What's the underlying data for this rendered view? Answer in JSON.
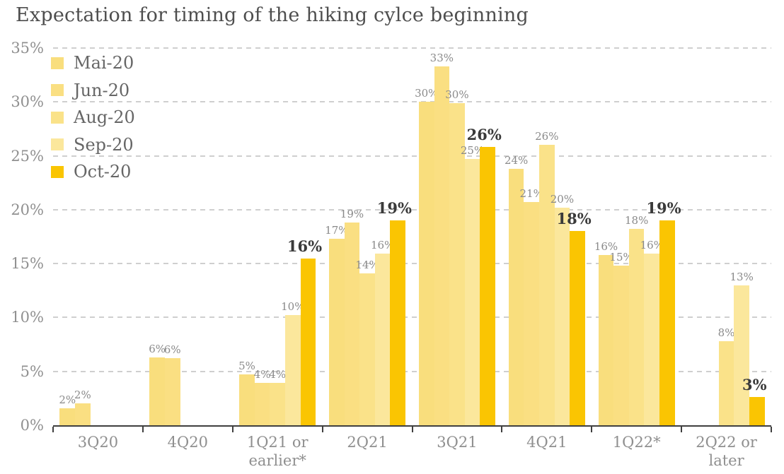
{
  "chart_data": {
    "type": "bar",
    "title": "Expectation for timing of the hiking cylce beginning",
    "categories": [
      "3Q20",
      "4Q20",
      "1Q21 or earlier*",
      "2Q21",
      "3Q21",
      "4Q21",
      "1Q22*",
      "2Q22 or later"
    ],
    "series": [
      {
        "name": "Mai-20",
        "color": "#F9DE7D",
        "values": [
          2,
          6,
          5,
          17,
          30,
          24,
          16,
          null
        ],
        "bar_heights_pct": [
          1.6,
          6.3,
          4.7,
          17.3,
          30.0,
          23.8,
          15.8,
          null
        ]
      },
      {
        "name": "Jun-20",
        "color": "#FADF82",
        "values": [
          2,
          6,
          4,
          19,
          33,
          21,
          15,
          null
        ],
        "bar_heights_pct": [
          2.0,
          6.2,
          3.9,
          18.8,
          33.3,
          20.7,
          14.8,
          null
        ]
      },
      {
        "name": "Aug-20",
        "color": "#FAE289",
        "values": [
          null,
          null,
          4,
          14,
          30,
          26,
          18,
          8
        ],
        "bar_heights_pct": [
          null,
          null,
          3.9,
          14.1,
          29.9,
          26.0,
          18.2,
          7.8
        ]
      },
      {
        "name": "Sep-20",
        "color": "#FBE79C",
        "values": [
          null,
          null,
          10,
          16,
          25,
          20,
          16,
          13
        ],
        "bar_heights_pct": [
          null,
          null,
          10.2,
          15.9,
          24.7,
          20.2,
          15.9,
          13.0
        ]
      },
      {
        "name": "Oct-20",
        "color": "#FAC502",
        "emphasis": true,
        "values": [
          null,
          null,
          16,
          19,
          26,
          18,
          19,
          3
        ],
        "bar_heights_pct": [
          null,
          null,
          15.5,
          19.0,
          25.8,
          18.0,
          19.0,
          2.6
        ]
      }
    ],
    "value_suffix": "%",
    "ylim": [
      0,
      35
    ],
    "ytick_labels": [
      "0%",
      "5%",
      "10%",
      "15%",
      "20%",
      "25%",
      "30%",
      "35%"
    ],
    "grid": "horizontal dashed at every 5%",
    "legend_position": "top-left inside plot",
    "colors": {
      "title": "#4e4e4e",
      "grid": "#cfcfcf",
      "axis": "#3f3f3f",
      "tick_label": "#909090",
      "category_label": "#8f8f8f",
      "value_label": "#8a8a8a",
      "emphasis_label": "#3a3a3a",
      "legend_label": "#666666",
      "background": "#ffffff"
    }
  }
}
